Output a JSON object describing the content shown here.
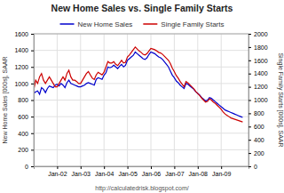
{
  "chart_data": {
    "type": "line",
    "title": "New Home Sales vs. Single Family Starts",
    "ylabel": "New Home Sales [000s], SAAR",
    "y2label": "Single Family Starts [000s], SAAR",
    "annotations": [
      "http://calculatedrisk.blogspot.com/"
    ],
    "legend": "top",
    "grid": true,
    "ylim": [
      0,
      1600
    ],
    "yticks": [
      0,
      200,
      400,
      600,
      800,
      1000,
      1200,
      1400,
      1600
    ],
    "y2lim": [
      0,
      2000
    ],
    "y2ticks": [
      0,
      200,
      400,
      600,
      800,
      1000,
      1200,
      1400,
      1600,
      1800,
      2000
    ],
    "categories": [
      null,
      null,
      null,
      null,
      null,
      null,
      null,
      null,
      null,
      null,
      null,
      null,
      "Jan-02",
      null,
      null,
      null,
      null,
      null,
      null,
      null,
      null,
      null,
      null,
      null,
      "Jan-03",
      null,
      null,
      null,
      null,
      null,
      null,
      null,
      null,
      null,
      null,
      null,
      "Jan-04",
      null,
      null,
      null,
      null,
      null,
      null,
      null,
      null,
      null,
      null,
      null,
      "Jan-05",
      null,
      null,
      null,
      null,
      null,
      null,
      null,
      null,
      null,
      null,
      null,
      "Jan-06",
      null,
      null,
      null,
      null,
      null,
      null,
      null,
      null,
      null,
      null,
      null,
      "Jan-07",
      null,
      null,
      null,
      null,
      null,
      null,
      null,
      null,
      null,
      null,
      null,
      "Jan-08",
      null,
      null,
      null,
      null,
      null,
      null,
      null,
      null,
      null,
      null,
      null,
      "Jan-09",
      null,
      null,
      null,
      null,
      null,
      null,
      null,
      null,
      null,
      null,
      null
    ],
    "series": [
      {
        "name": "New Home Sales",
        "color": "#0000cc",
        "axis": "y",
        "values": [
          880,
          900,
          910,
          870,
          950,
          930,
          890,
          940,
          970,
          960,
          950,
          980,
          990,
          970,
          1000,
          980,
          950,
          1010,
          1040,
          1000,
          990,
          980,
          970,
          960,
          960,
          970,
          980,
          1000,
          1010,
          1000,
          990,
          980,
          1050,
          1070,
          1060,
          1050,
          1100,
          1130,
          1200,
          1190,
          1200,
          1220,
          1200,
          1180,
          1210,
          1230,
          1200,
          1220,
          1280,
          1300,
          1320,
          1340,
          1380,
          1360,
          1340,
          1320,
          1300,
          1290,
          1310,
          1350,
          1380,
          1370,
          1360,
          1340,
          1320,
          1310,
          1290,
          1260,
          1230,
          1200,
          1150,
          1100,
          1070,
          1030,
          1010,
          980,
          960,
          940,
          1000,
          990,
          970,
          950,
          930,
          900,
          880,
          860,
          830,
          810,
          790,
          800,
          830,
          820,
          800,
          780,
          760,
          740,
          720,
          700,
          680,
          670,
          660,
          650,
          640,
          630,
          620,
          610,
          600,
          590
        ]
      },
      {
        "name": "Single Family Starts",
        "color": "#cc0000",
        "axis": "y2",
        "values": [
          1150,
          1300,
          1250,
          1350,
          1400,
          1300,
          1250,
          1300,
          1350,
          1300,
          1250,
          1200,
          1200,
          1250,
          1300,
          1350,
          1300,
          1400,
          1450,
          1350,
          1300,
          1300,
          1280,
          1250,
          1250,
          1300,
          1350,
          1400,
          1430,
          1380,
          1330,
          1310,
          1380,
          1420,
          1400,
          1380,
          1420,
          1500,
          1580,
          1560,
          1560,
          1580,
          1540,
          1520,
          1560,
          1600,
          1560,
          1570,
          1650,
          1680,
          1720,
          1760,
          1800,
          1770,
          1740,
          1720,
          1690,
          1680,
          1700,
          1740,
          1780,
          1770,
          1760,
          1740,
          1720,
          1710,
          1690,
          1660,
          1630,
          1600,
          1550,
          1480,
          1430,
          1370,
          1330,
          1280,
          1240,
          1200,
          1280,
          1260,
          1230,
          1200,
          1170,
          1130,
          1100,
          1070,
          1030,
          1000,
          970,
          980,
          1020,
          1000,
          970,
          950,
          920,
          890,
          860,
          820,
          790,
          770,
          750,
          730,
          720,
          710,
          700,
          690,
          680,
          670
        ]
      }
    ]
  }
}
